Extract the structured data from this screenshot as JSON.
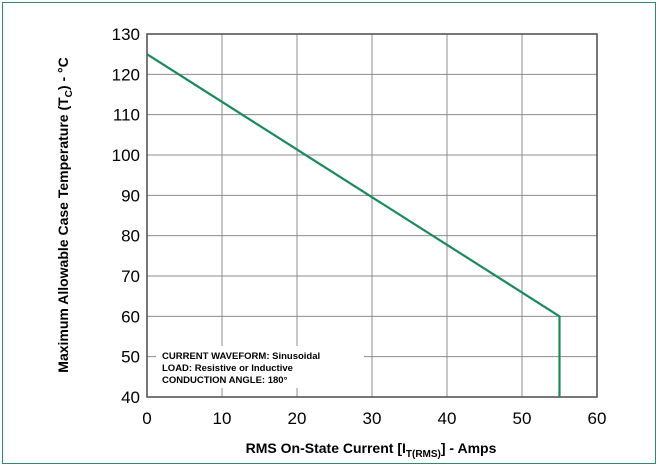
{
  "chart_data": {
    "type": "line",
    "xlabel": {
      "prefix": "RMS On-State Current [I",
      "sub": "T(RMS)",
      "suffix": "] - Amps"
    },
    "ylabel": {
      "prefix": "Maximum Allowable Case Temperature (T",
      "sub": "C",
      "suffix": ") - °C"
    },
    "xlim": [
      0,
      60
    ],
    "ylim": [
      40,
      130
    ],
    "x_ticks": [
      0,
      10,
      20,
      30,
      40,
      50,
      60
    ],
    "y_ticks": [
      40,
      50,
      60,
      70,
      80,
      90,
      100,
      110,
      120,
      130
    ],
    "grid": true,
    "series": [
      {
        "color": "#1a8a5a",
        "x": [
          0,
          55,
          55
        ],
        "y": [
          125,
          60,
          40
        ]
      }
    ],
    "annotations": [
      "CURRENT WAVEFORM: Sinusoidal",
      "LOAD: Resistive or Inductive",
      "CONDUCTION ANGLE: 180°"
    ]
  }
}
